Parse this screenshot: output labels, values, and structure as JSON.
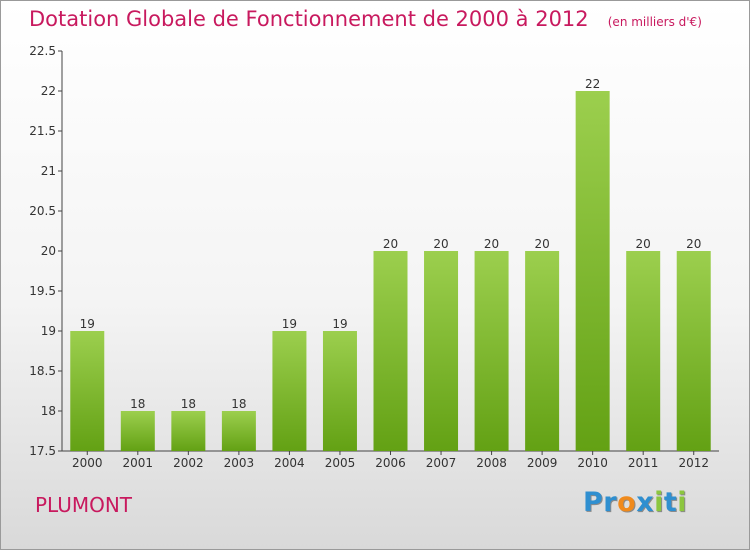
{
  "chart_data": {
    "type": "bar",
    "title": "Dotation Globale de Fonctionnement de 2000 à 2012",
    "subtitle": "(en milliers d'€)",
    "categories": [
      "2000",
      "2001",
      "2002",
      "2003",
      "2004",
      "2005",
      "2006",
      "2007",
      "2008",
      "2009",
      "2010",
      "2011",
      "2012"
    ],
    "values": [
      19,
      18,
      18,
      18,
      19,
      19,
      20,
      20,
      20,
      20,
      22,
      20,
      20
    ],
    "value_labels": [
      "19",
      "18",
      "18",
      "18",
      "19",
      "19",
      "20",
      "20",
      "20",
      "20",
      "22",
      "20",
      "20"
    ],
    "ylim": [
      17.5,
      22.5
    ],
    "yticks": [
      "17.5",
      "18",
      "18.5",
      "19",
      "19.5",
      "20",
      "20.5",
      "21",
      "21.5",
      "22",
      "22.5"
    ],
    "grid": false,
    "legend": "none",
    "colors": {
      "bar_top": "#9ccf4e",
      "bar_bottom": "#63a114",
      "title": "#c8195e"
    }
  },
  "commune": "PLUMONT",
  "logo": {
    "text": "Proxiti",
    "letters": [
      "P",
      "r",
      "o",
      "x",
      "i",
      "t",
      "i"
    ],
    "colors": [
      "#2f8fd0",
      "#2f8fd0",
      "#f08a1c",
      "#2f8fd0",
      "#8cc63f",
      "#2f8fd0",
      "#8cc63f"
    ]
  }
}
